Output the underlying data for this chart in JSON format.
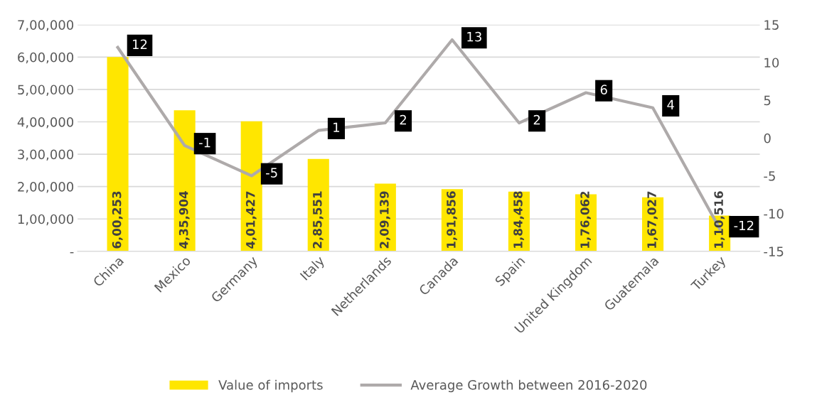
{
  "chart_data": {
    "type": "bar",
    "categories": [
      "China",
      "Mexico",
      "Germany",
      "Italy",
      "Netherlands",
      "Canada",
      "Spain",
      "United Kingdom",
      "Guatemala",
      "Turkey"
    ],
    "series": [
      {
        "name": "Value of imports",
        "color": "#ffe600",
        "values": [
          600253,
          435904,
          401427,
          285551,
          209139,
          191856,
          184458,
          176062,
          167027,
          110516
        ],
        "value_labels": [
          "6,00,253",
          "4,35,904",
          "4,01,427",
          "2,85,551",
          "2,09,139",
          "1,91,856",
          "1,84,458",
          "1,76,062",
          "1,67,027",
          "1,10,516"
        ]
      },
      {
        "name": "Average Growth between 2016-2020",
        "type": "line",
        "axis": "y2",
        "color": "#aeaaaa",
        "values": [
          12,
          -1,
          -5,
          1,
          2,
          13,
          2,
          6,
          4,
          -12
        ],
        "value_labels": [
          "12",
          "-1",
          "-5",
          "1",
          "2",
          "13",
          "2",
          "6",
          "4",
          "-12"
        ]
      }
    ],
    "ylim": [
      0,
      700000
    ],
    "yticks": [
      {
        "value": 0,
        "label": "-"
      },
      {
        "value": 100000,
        "label": "1,00,000"
      },
      {
        "value": 200000,
        "label": "2,00,000"
      },
      {
        "value": 300000,
        "label": "3,00,000"
      },
      {
        "value": 400000,
        "label": "4,00,000"
      },
      {
        "value": 500000,
        "label": "5,00,000"
      },
      {
        "value": 600000,
        "label": "6,00,000"
      },
      {
        "value": 700000,
        "label": "7,00,000"
      }
    ],
    "y2lim": [
      -15,
      15
    ],
    "y2ticks": [
      -15,
      -10,
      -5,
      0,
      5,
      10,
      15
    ],
    "grid": "y",
    "legend": "bottom"
  }
}
